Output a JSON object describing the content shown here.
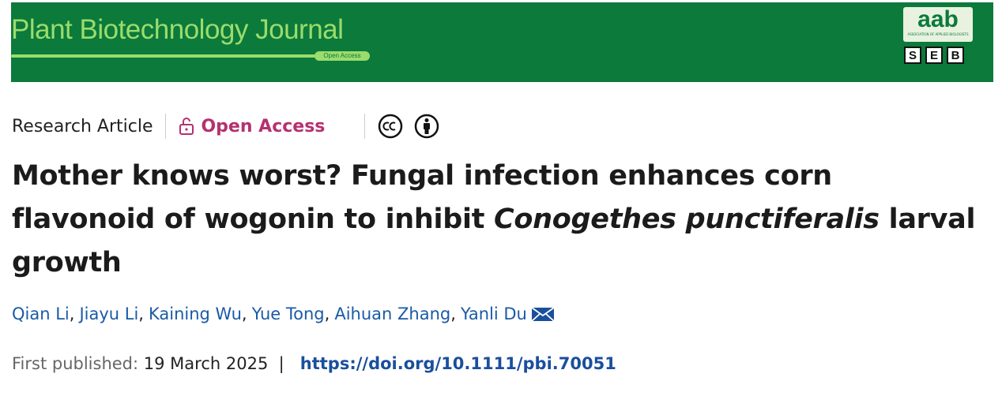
{
  "header": {
    "journal": "Plant Biotechnology Journal",
    "badge": "Open Access",
    "logo": {
      "top": "aab",
      "subtitle": "ASSOCIATION OF APPLIED BIOLOGISTS",
      "letters": [
        "S",
        "E",
        "B"
      ]
    }
  },
  "article": {
    "type": "Research Article",
    "access": "Open Access",
    "title": {
      "before": "Mother knows worst? Fungal infection enhances corn flavonoid of wogonin to inhibit ",
      "species": "Conogethes punctiferalis",
      "after": " larval growth"
    },
    "authors": [
      "Qian Li",
      "Jiayu Li",
      "Kaining Wu",
      "Yue Tong",
      "Aihuan Zhang",
      "Yanli Du"
    ],
    "author_separator": ",",
    "published_label": "First published:",
    "published_date": "19 March 2025",
    "divider": "|",
    "doi": "https://doi.org/10.1111/pbi.70051"
  }
}
